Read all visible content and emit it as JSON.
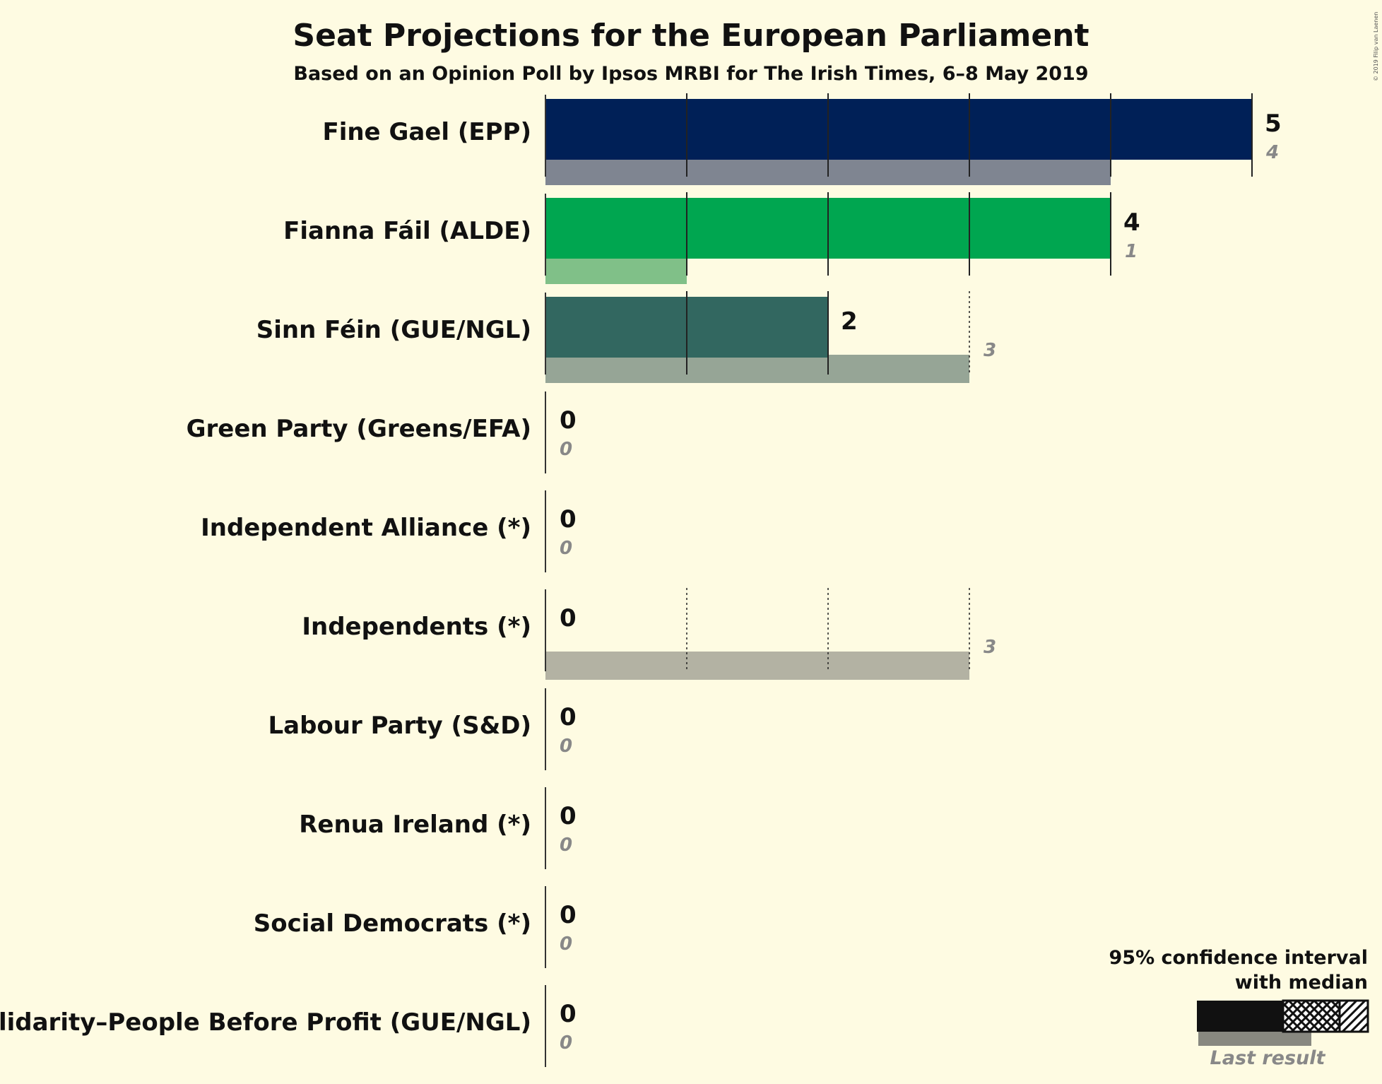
{
  "chart_data": {
    "type": "bar",
    "title": "Seat Projections for the European Parliament",
    "subtitle": "Based on an Opinion Poll by Ipsos MRBI for The Irish Times, 6–8 May 2019",
    "copyright": "© 2019 Filip van Laenen",
    "xlim": [
      0,
      5
    ],
    "grid": "vertical dotted lines at each seat",
    "parties": [
      {
        "name": "Fine Gael (EPP)",
        "median": 5,
        "last_result": 4,
        "color": "#002057",
        "last_color": "#7f8591"
      },
      {
        "name": "Fianna Fáil (ALDE)",
        "median": 4,
        "last_result": 1,
        "color": "#00a650",
        "last_color": "#80c088"
      },
      {
        "name": "Sinn Féin (GUE/NGL)",
        "median": 2,
        "last_result": 3,
        "color": "#326760",
        "last_color": "#96a596"
      },
      {
        "name": "Green Party (Greens/EFA)",
        "median": 0,
        "last_result": 0,
        "color": "#3fa535",
        "last_color": "#9fc290"
      },
      {
        "name": "Independent Alliance (*)",
        "median": 0,
        "last_result": 0,
        "color": "#666666",
        "last_color": "#b0b0a0"
      },
      {
        "name": "Independents (*)",
        "median": 0,
        "last_result": 3,
        "color": "#666666",
        "last_color": "#b3b2a3"
      },
      {
        "name": "Labour Party (S&D)",
        "median": 0,
        "last_result": 0,
        "color": "#cc0000",
        "last_color": "#e08a80"
      },
      {
        "name": "Renua Ireland (*)",
        "median": 0,
        "last_result": 0,
        "color": "#ff8c00",
        "last_color": "#ffc080"
      },
      {
        "name": "Social Democrats (*)",
        "median": 0,
        "last_result": 0,
        "color": "#752f8b",
        "last_color": "#b89ab8"
      },
      {
        "name": "Solidarity–People Before Profit (GUE/NGL)",
        "median": 0,
        "last_result": 0,
        "color": "#8e2420",
        "last_color": "#c08880"
      }
    ],
    "legend": {
      "line1": "95% confidence interval",
      "line2": "with median",
      "last_result": "Last result",
      "position": "bottom-right"
    }
  }
}
